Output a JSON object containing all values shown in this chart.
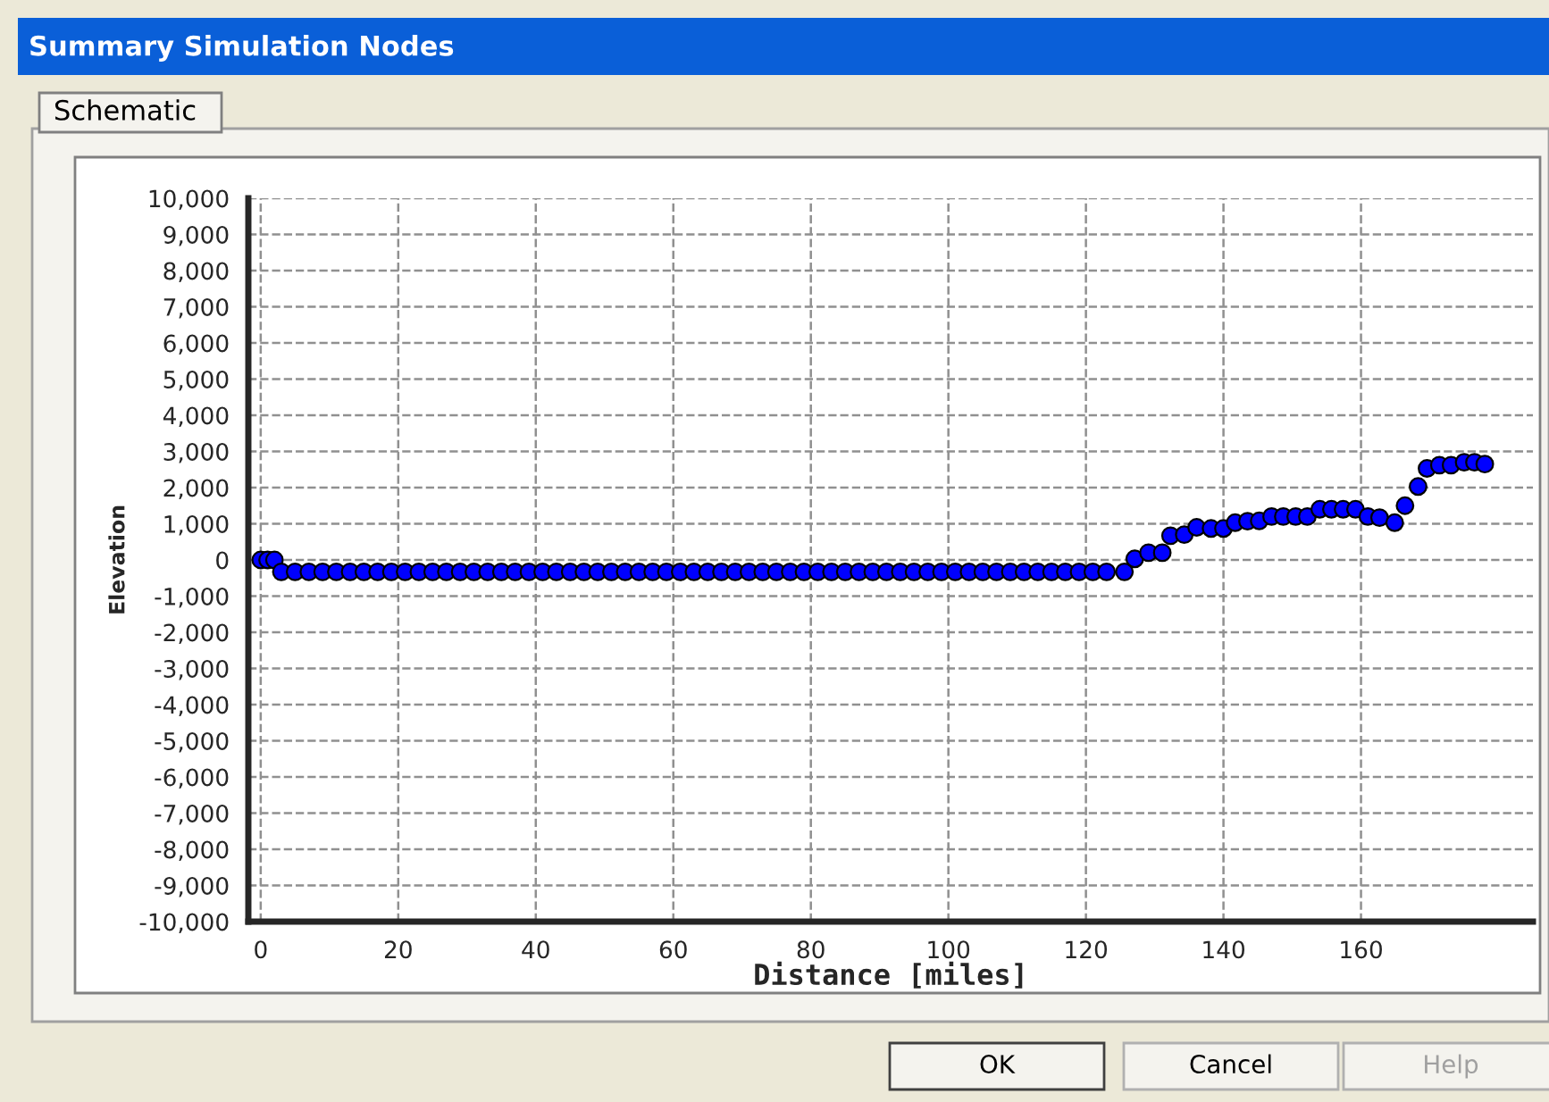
{
  "chart_data": {
    "type": "scatter",
    "title": "Summary Simulation Nodes",
    "xlabel": "Distance [miles]",
    "ylabel": "Elevation",
    "annotations": [
      "Schematic",
      "OK",
      "Cancel",
      "Help"
    ],
    "series": [
      {
        "color": "#0000ff",
        "x": [
          0,
          1,
          2,
          3,
          5,
          7,
          9,
          11,
          13,
          15,
          17,
          19,
          21,
          23,
          25,
          27,
          29,
          31,
          33,
          35,
          37,
          39,
          41,
          43,
          45,
          47,
          49,
          51,
          53,
          55,
          57,
          59,
          61,
          63,
          65,
          67,
          69,
          71,
          73,
          75,
          77,
          79,
          81,
          83,
          85,
          87,
          89,
          91,
          93,
          95,
          97,
          99,
          101,
          103,
          105,
          107,
          109,
          111,
          113,
          115,
          117,
          119,
          121,
          123,
          125.6,
          127.1,
          129.1,
          131.1,
          132.3,
          134.3,
          136.1,
          138.2,
          140,
          141.7,
          143.5,
          145.2,
          147,
          148.7,
          150.5,
          152.2,
          154,
          155.7,
          157.4,
          159.2,
          161,
          162.7,
          164.9,
          166.4,
          168.3,
          169.6,
          171.4,
          173.1,
          175,
          176.5,
          178
        ],
        "values": [
          0,
          0,
          0,
          -330,
          -330,
          -330,
          -330,
          -330,
          -330,
          -330,
          -330,
          -330,
          -330,
          -330,
          -330,
          -330,
          -330,
          -330,
          -330,
          -330,
          -330,
          -330,
          -330,
          -330,
          -330,
          -330,
          -330,
          -330,
          -330,
          -330,
          -330,
          -330,
          -330,
          -330,
          -330,
          -330,
          -330,
          -330,
          -330,
          -330,
          -330,
          -330,
          -330,
          -330,
          -330,
          -330,
          -330,
          -330,
          -330,
          -330,
          -330,
          -330,
          -330,
          -330,
          -330,
          -330,
          -330,
          -330,
          -330,
          -330,
          -330,
          -330,
          -330,
          -330,
          -330,
          30,
          200,
          200,
          670,
          700,
          900,
          870,
          870,
          1030,
          1070,
          1080,
          1200,
          1200,
          1200,
          1200,
          1400,
          1400,
          1400,
          1400,
          1200,
          1170,
          1030,
          1500,
          2030,
          2530,
          2620,
          2620,
          2700,
          2700,
          2650
        ]
      }
    ],
    "xlim": [
      -1.8,
      185
    ],
    "xticks": [
      0,
      20,
      40,
      60,
      80,
      100,
      120,
      140,
      160
    ],
    "ylim": [
      -10000,
      10000
    ],
    "yticks": [
      {
        "value": -10000,
        "label": "-10,000"
      },
      {
        "value": -9000,
        "label": "-9,000"
      },
      {
        "value": -8000,
        "label": "-8,000"
      },
      {
        "value": -7000,
        "label": "-7,000"
      },
      {
        "value": -6000,
        "label": "-6,000"
      },
      {
        "value": -5000,
        "label": "-5,000"
      },
      {
        "value": -4000,
        "label": "-4,000"
      },
      {
        "value": -3000,
        "label": "-3,000"
      },
      {
        "value": -2000,
        "label": "-2,000"
      },
      {
        "value": -1000,
        "label": "-1,000"
      },
      0,
      {
        "value": 1000,
        "label": "1,000"
      },
      {
        "value": 2000,
        "label": "2,000"
      },
      {
        "value": 3000,
        "label": "3,000"
      },
      {
        "value": 4000,
        "label": "4,000"
      },
      {
        "value": 5000,
        "label": "5,000"
      },
      {
        "value": 6000,
        "label": "6,000"
      },
      {
        "value": 7000,
        "label": "7,000"
      },
      {
        "value": 8000,
        "label": "8,000"
      },
      {
        "value": 9000,
        "label": "9,000"
      },
      {
        "value": 10000,
        "label": "10,000"
      }
    ],
    "grid": true,
    "marker": "circle"
  }
}
